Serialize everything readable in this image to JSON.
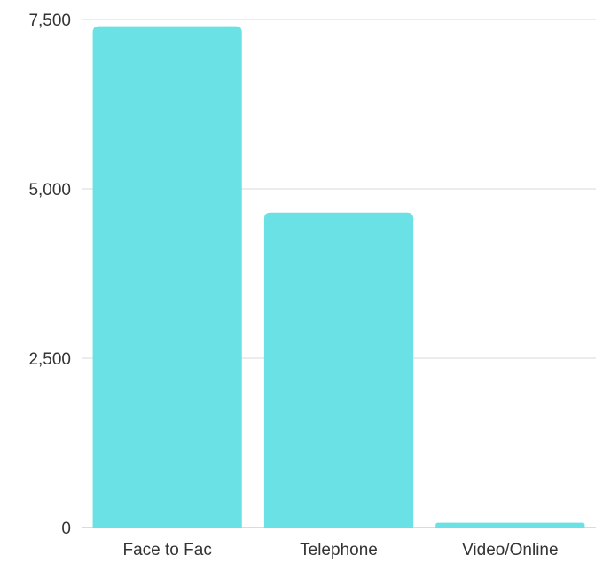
{
  "chart_data": {
    "type": "bar",
    "categories": [
      "Face to Fac",
      "Telephone",
      "Video/Online"
    ],
    "values": [
      7400,
      4650,
      70
    ],
    "ylim": [
      0,
      7500
    ],
    "yticks": [
      0,
      2500,
      5000,
      7500
    ],
    "ytick_labels": [
      "0",
      "2,500",
      "5,000",
      "7,500"
    ],
    "grid": true,
    "bar_color": "#6ae2e5",
    "title": "",
    "xlabel": "",
    "ylabel": ""
  }
}
